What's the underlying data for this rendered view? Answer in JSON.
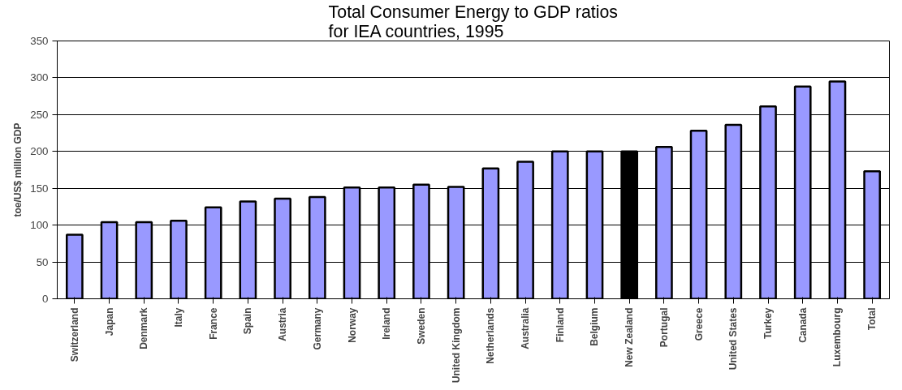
{
  "chart_data": {
    "type": "bar",
    "title": "Total Consumer Energy to GDP ratios\nfor IEA countries, 1995",
    "ylabel": "toe/US$ million GDP",
    "categories": [
      "Switzerland",
      "Japan",
      "Denmark",
      "Italy",
      "France",
      "Spain",
      "Austria",
      "Germany",
      "Norway",
      "Ireland",
      "Sweden",
      "United Kingdom",
      "Netherlands",
      "Australia",
      "Finland",
      "Belgium",
      "New Zealand",
      "Portugal",
      "Greece",
      "United States",
      "Turkey",
      "Canada",
      "Luxembourg",
      "Total"
    ],
    "values": [
      87,
      104,
      104,
      106,
      124,
      132,
      136,
      138,
      151,
      151,
      155,
      152,
      177,
      186,
      200,
      200,
      200,
      206,
      228,
      236,
      261,
      288,
      295,
      173
    ],
    "colors": [
      "#9999ff",
      "#9999ff",
      "#9999ff",
      "#9999ff",
      "#9999ff",
      "#9999ff",
      "#9999ff",
      "#9999ff",
      "#9999ff",
      "#9999ff",
      "#9999ff",
      "#9999ff",
      "#9999ff",
      "#9999ff",
      "#9999ff",
      "#9999ff",
      "#000000",
      "#9999ff",
      "#9999ff",
      "#9999ff",
      "#9999ff",
      "#9999ff",
      "#9999ff",
      "#9999ff"
    ],
    "ylim": [
      0,
      350
    ],
    "yticks": [
      0,
      50,
      100,
      150,
      200,
      250,
      300,
      350
    ],
    "grid": "y"
  }
}
